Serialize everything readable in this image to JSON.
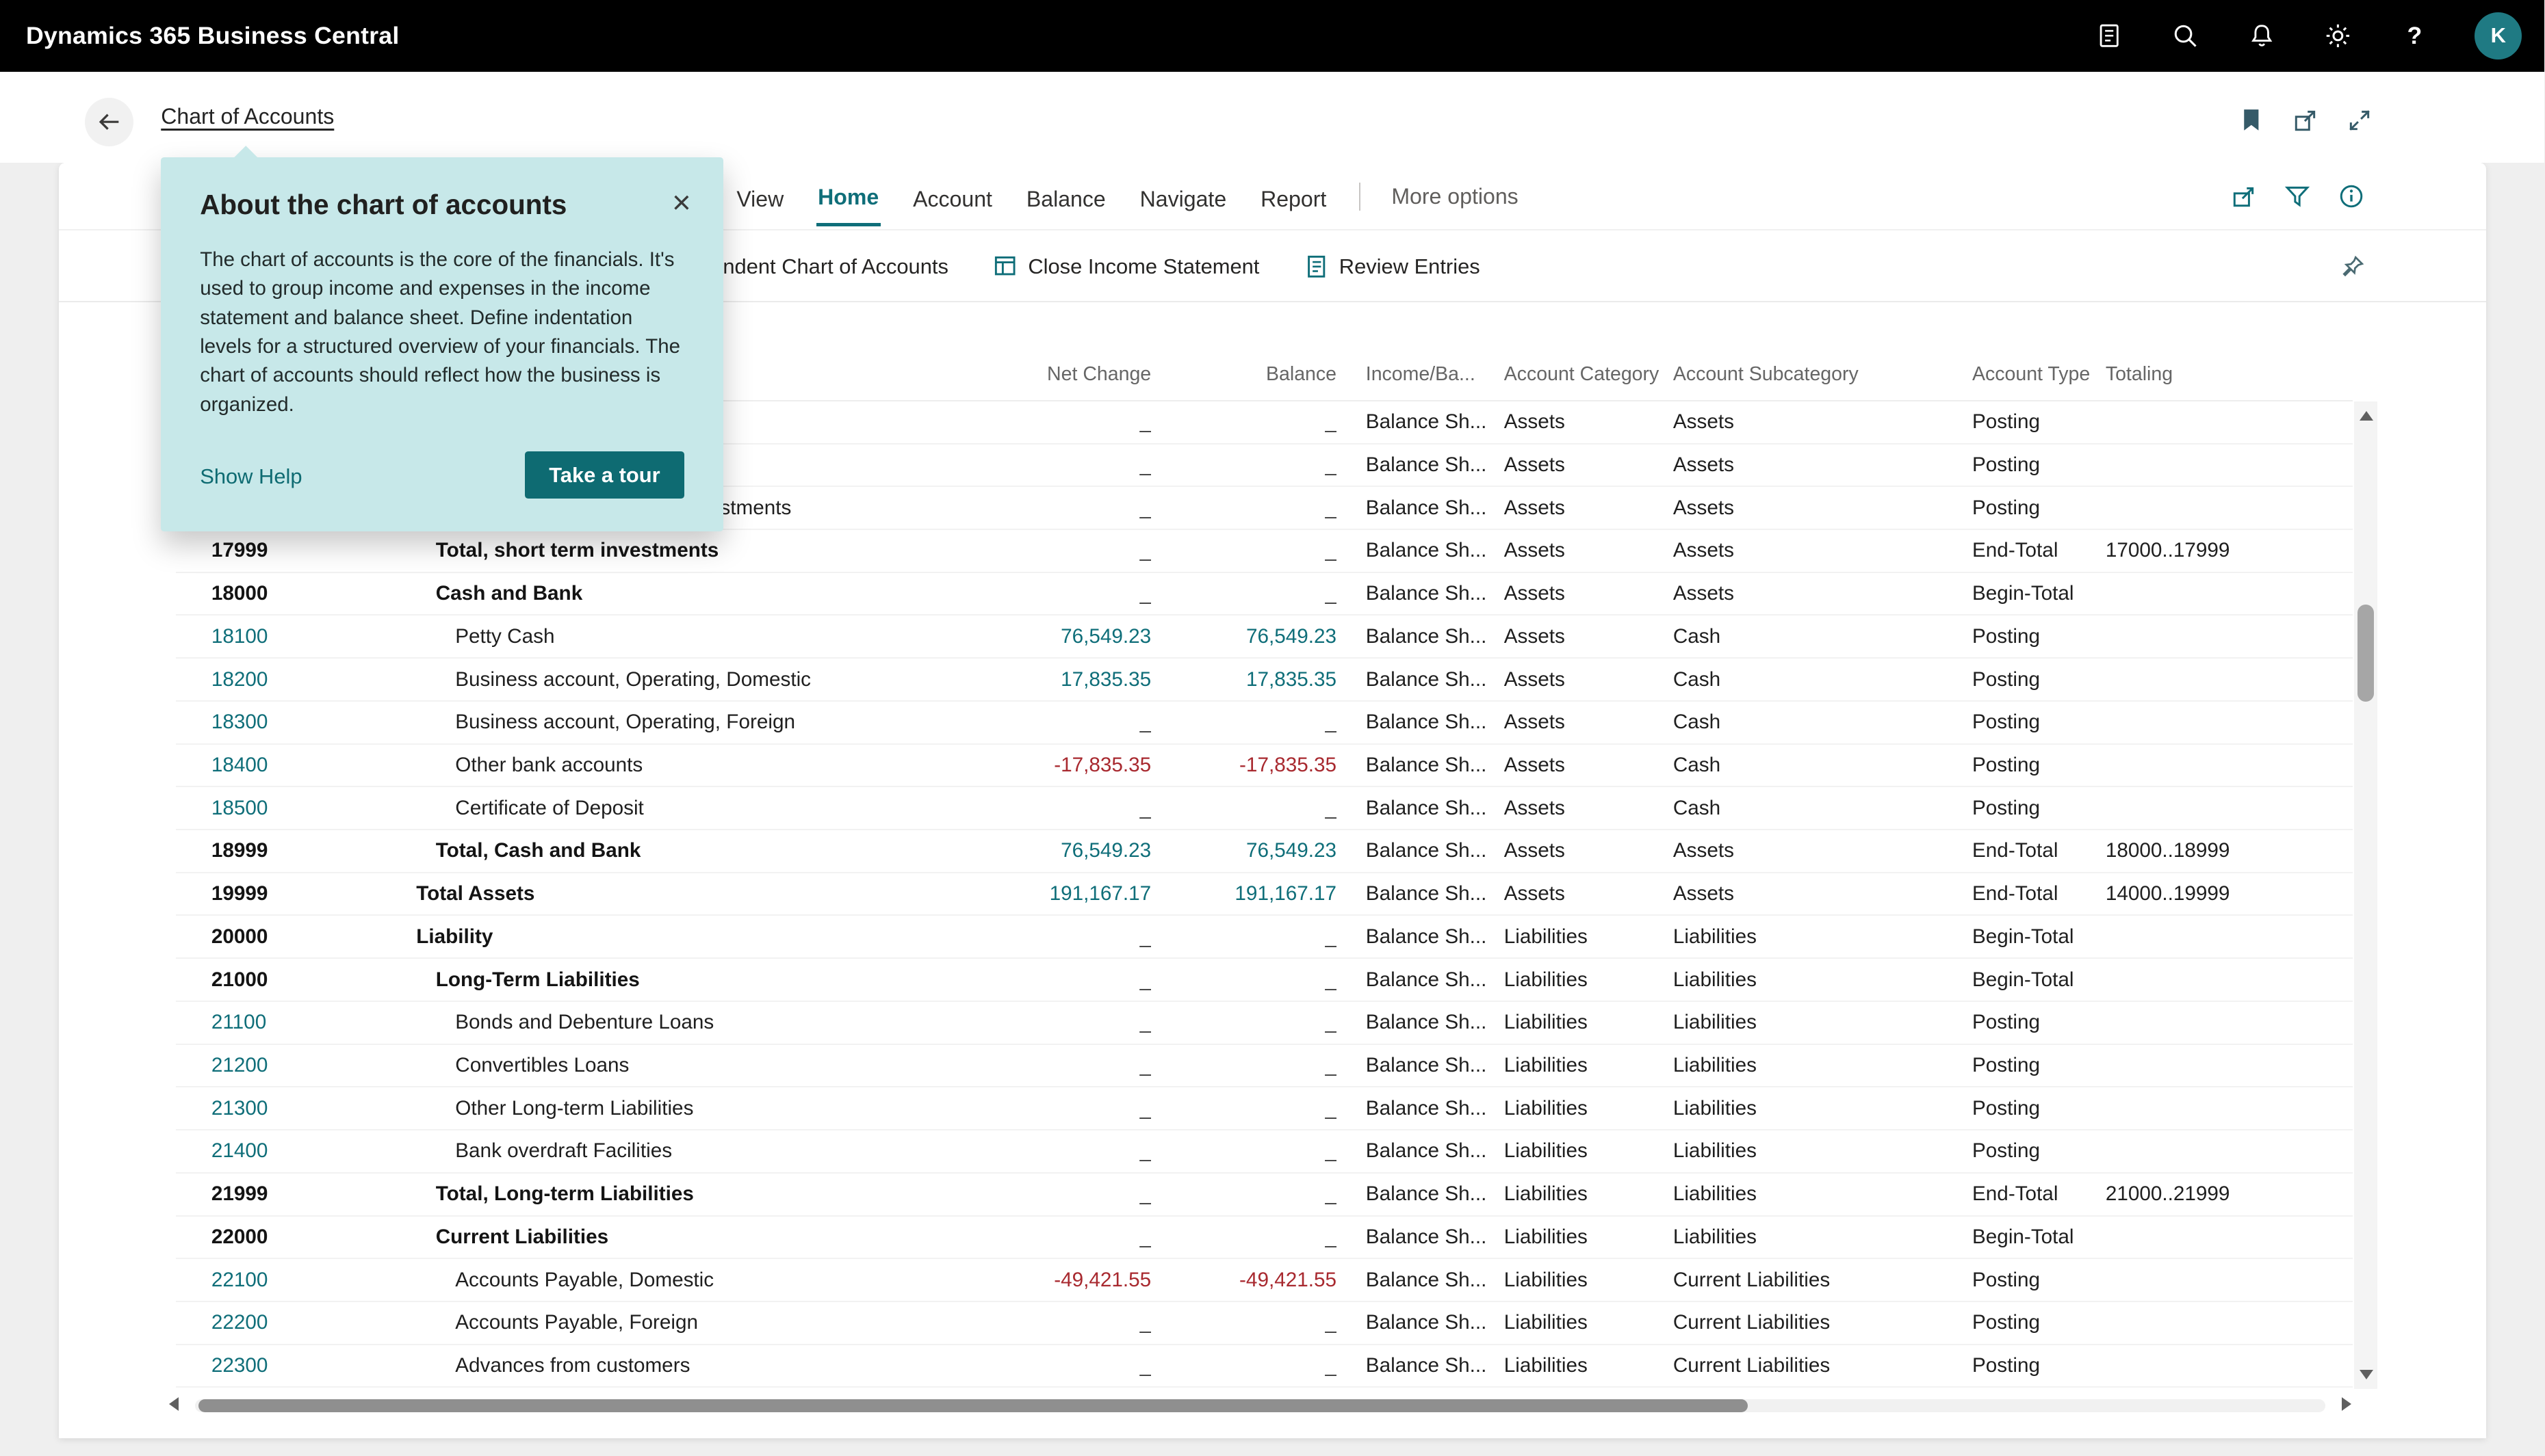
{
  "app": {
    "title": "Dynamics 365 Business Central",
    "avatar_initial": "K",
    "header_icons": [
      "document-icon",
      "search-icon",
      "notifications-icon",
      "settings-icon",
      "help-icon"
    ]
  },
  "page": {
    "breadcrumb": "Chart of Accounts",
    "top_icons": [
      "bookmark-icon",
      "popout-icon",
      "collapse-icon"
    ]
  },
  "callout": {
    "title": "About the chart of accounts",
    "body": "The chart of accounts is the core of the financials. It's used to group income and expenses in the income statement and balance sheet. Define indentation levels for a structured overview of your financials. The chart of accounts should reflect how the business is organized.",
    "show_help_label": "Show Help",
    "tour_button_label": "Take a tour",
    "close_glyph": "×"
  },
  "ribbon": {
    "tabs": [
      "View",
      "Home",
      "Account",
      "Balance",
      "Navigate",
      "Report"
    ],
    "active_tab": "Home",
    "more_options_label": "More options",
    "right_icons": [
      "share-icon",
      "filter-icon",
      "info-icon"
    ]
  },
  "action_bar": {
    "actions": [
      {
        "label": "Indent Chart of Accounts",
        "icon": ""
      },
      {
        "label": "Close Income Statement",
        "icon": "close-income-statement-icon"
      },
      {
        "label": "Review Entries",
        "icon": "review-entries-icon"
      }
    ],
    "pin_icon": "pin-icon"
  },
  "table": {
    "empty_value": "_",
    "columns": [
      {
        "key": "no",
        "label": ""
      },
      {
        "key": "name",
        "label": ""
      },
      {
        "key": "net",
        "label": "Net Change"
      },
      {
        "key": "bal",
        "label": "Balance"
      },
      {
        "key": "inc",
        "label": "Income/Ba..."
      },
      {
        "key": "cat",
        "label": "Account Category"
      },
      {
        "key": "sub",
        "label": "Account Subcategory"
      },
      {
        "key": "type",
        "label": "Account Type"
      },
      {
        "key": "tot",
        "label": "Totaling"
      }
    ],
    "rows": [
      {
        "no": "",
        "name": "",
        "net": "_",
        "bal": "_",
        "inc": "Balance Sh...",
        "cat": "Assets",
        "sub": "Assets",
        "type": "Posting",
        "tot": "",
        "bold": false,
        "indent": 3
      },
      {
        "no": "",
        "name": "",
        "net": "_",
        "bal": "_",
        "inc": "Balance Sh...",
        "cat": "Assets",
        "sub": "Assets",
        "type": "Posting",
        "tot": "",
        "bold": false,
        "indent": 3
      },
      {
        "no": "",
        "name": "Write-down of short term investments",
        "net": "_",
        "bal": "_",
        "inc": "Balance Sh...",
        "cat": "Assets",
        "sub": "Assets",
        "type": "Posting",
        "tot": "",
        "bold": false,
        "indent": 3
      },
      {
        "no": "17999",
        "name": "Total, short term investments",
        "net": "_",
        "bal": "_",
        "inc": "Balance Sh...",
        "cat": "Assets",
        "sub": "Assets",
        "type": "End-Total",
        "tot": "17000..17999",
        "bold": true,
        "indent": 2
      },
      {
        "no": "18000",
        "name": "Cash and Bank",
        "net": "_",
        "bal": "_",
        "inc": "Balance Sh...",
        "cat": "Assets",
        "sub": "Assets",
        "type": "Begin-Total",
        "tot": "",
        "bold": true,
        "indent": 2
      },
      {
        "no": "18100",
        "name": "Petty Cash",
        "net": "76,549.23",
        "bal": "76,549.23",
        "inc": "Balance Sh...",
        "cat": "Assets",
        "sub": "Cash",
        "type": "Posting",
        "tot": "",
        "bold": false,
        "indent": 3
      },
      {
        "no": "18200",
        "name": "Business account, Operating, Domestic",
        "net": "17,835.35",
        "bal": "17,835.35",
        "inc": "Balance Sh...",
        "cat": "Assets",
        "sub": "Cash",
        "type": "Posting",
        "tot": "",
        "bold": false,
        "indent": 3
      },
      {
        "no": "18300",
        "name": "Business account, Operating, Foreign",
        "net": "_",
        "bal": "_",
        "inc": "Balance Sh...",
        "cat": "Assets",
        "sub": "Cash",
        "type": "Posting",
        "tot": "",
        "bold": false,
        "indent": 3
      },
      {
        "no": "18400",
        "name": "Other bank accounts",
        "net": "-17,835.35",
        "bal": "-17,835.35",
        "inc": "Balance Sh...",
        "cat": "Assets",
        "sub": "Cash",
        "type": "Posting",
        "tot": "",
        "bold": false,
        "indent": 3
      },
      {
        "no": "18500",
        "name": "Certificate of Deposit",
        "net": "_",
        "bal": "_",
        "inc": "Balance Sh...",
        "cat": "Assets",
        "sub": "Cash",
        "type": "Posting",
        "tot": "",
        "bold": false,
        "indent": 3
      },
      {
        "no": "18999",
        "name": "Total, Cash and Bank",
        "net": "76,549.23",
        "bal": "76,549.23",
        "inc": "Balance Sh...",
        "cat": "Assets",
        "sub": "Assets",
        "type": "End-Total",
        "tot": "18000..18999",
        "bold": true,
        "indent": 2
      },
      {
        "no": "19999",
        "name": "Total Assets",
        "net": "191,167.17",
        "bal": "191,167.17",
        "inc": "Balance Sh...",
        "cat": "Assets",
        "sub": "Assets",
        "type": "End-Total",
        "tot": "14000..19999",
        "bold": true,
        "indent": 1
      },
      {
        "no": "20000",
        "name": "Liability",
        "net": "_",
        "bal": "_",
        "inc": "Balance Sh...",
        "cat": "Liabilities",
        "sub": "Liabilities",
        "type": "Begin-Total",
        "tot": "",
        "bold": true,
        "indent": 1
      },
      {
        "no": "21000",
        "name": "Long-Term Liabilities",
        "net": "_",
        "bal": "_",
        "inc": "Balance Sh...",
        "cat": "Liabilities",
        "sub": "Liabilities",
        "type": "Begin-Total",
        "tot": "",
        "bold": true,
        "indent": 2
      },
      {
        "no": "21100",
        "name": "Bonds and Debenture Loans",
        "net": "_",
        "bal": "_",
        "inc": "Balance Sh...",
        "cat": "Liabilities",
        "sub": "Liabilities",
        "type": "Posting",
        "tot": "",
        "bold": false,
        "indent": 3
      },
      {
        "no": "21200",
        "name": "Convertibles Loans",
        "net": "_",
        "bal": "_",
        "inc": "Balance Sh...",
        "cat": "Liabilities",
        "sub": "Liabilities",
        "type": "Posting",
        "tot": "",
        "bold": false,
        "indent": 3
      },
      {
        "no": "21300",
        "name": "Other Long-term Liabilities",
        "net": "_",
        "bal": "_",
        "inc": "Balance Sh...",
        "cat": "Liabilities",
        "sub": "Liabilities",
        "type": "Posting",
        "tot": "",
        "bold": false,
        "indent": 3
      },
      {
        "no": "21400",
        "name": "Bank overdraft Facilities",
        "net": "_",
        "bal": "_",
        "inc": "Balance Sh...",
        "cat": "Liabilities",
        "sub": "Liabilities",
        "type": "Posting",
        "tot": "",
        "bold": false,
        "indent": 3
      },
      {
        "no": "21999",
        "name": "Total, Long-term Liabilities",
        "net": "_",
        "bal": "_",
        "inc": "Balance Sh...",
        "cat": "Liabilities",
        "sub": "Liabilities",
        "type": "End-Total",
        "tot": "21000..21999",
        "bold": true,
        "indent": 2
      },
      {
        "no": "22000",
        "name": "Current Liabilities",
        "net": "_",
        "bal": "_",
        "inc": "Balance Sh...",
        "cat": "Liabilities",
        "sub": "Liabilities",
        "type": "Begin-Total",
        "tot": "",
        "bold": true,
        "indent": 2
      },
      {
        "no": "22100",
        "name": "Accounts Payable, Domestic",
        "net": "-49,421.55",
        "bal": "-49,421.55",
        "inc": "Balance Sh...",
        "cat": "Liabilities",
        "sub": "Current Liabilities",
        "type": "Posting",
        "tot": "",
        "bold": false,
        "indent": 3
      },
      {
        "no": "22200",
        "name": "Accounts Payable, Foreign",
        "net": "_",
        "bal": "_",
        "inc": "Balance Sh...",
        "cat": "Liabilities",
        "sub": "Current Liabilities",
        "type": "Posting",
        "tot": "",
        "bold": false,
        "indent": 3
      },
      {
        "no": "22300",
        "name": "Advances from customers",
        "net": "_",
        "bal": "_",
        "inc": "Balance Sh...",
        "cat": "Liabilities",
        "sub": "Current Liabilities",
        "type": "Posting",
        "tot": "",
        "bold": false,
        "indent": 3
      }
    ]
  },
  "colors": {
    "accent": "#0f6e79",
    "negative": "#a8292f",
    "callout_bg": "#c7e8e9",
    "topbar_bg": "#000000",
    "avatar_bg": "#1f7a83"
  }
}
